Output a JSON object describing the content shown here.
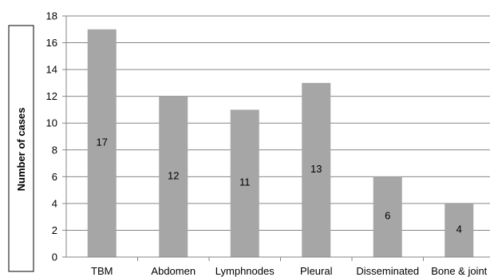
{
  "chart_data": {
    "type": "bar",
    "title": "",
    "xlabel": "",
    "ylabel": "Number of cases",
    "categories": [
      "TBM",
      "Abdomen",
      "Lymphnodes",
      "Pleural",
      "Disseminated",
      "Bone & joint"
    ],
    "values": [
      17,
      12,
      11,
      13,
      6,
      4
    ],
    "ylim": [
      0,
      18
    ],
    "yticks": [
      0,
      2,
      4,
      6,
      8,
      10,
      12,
      14,
      16,
      18
    ],
    "grid": true,
    "legend": "none",
    "colors": {
      "bar": "#a6a6a6",
      "grid": "#868686",
      "axis": "#868686"
    }
  }
}
